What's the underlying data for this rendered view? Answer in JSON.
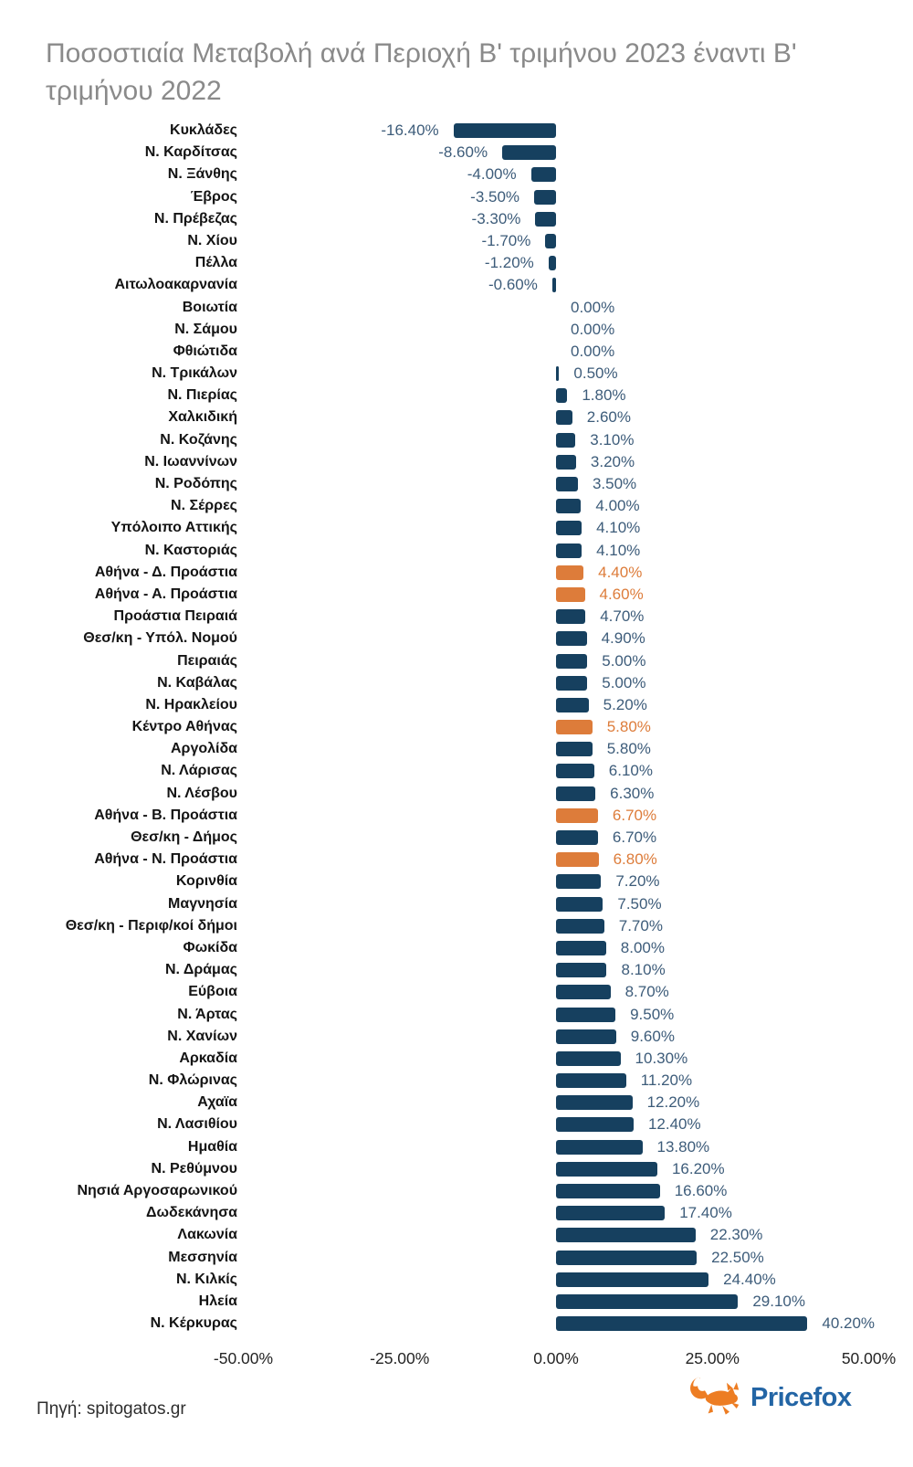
{
  "title": "Ποσοστιαία Μεταβολή ανά Περιοχή Β' τριμήνου 2023 έναντι Β' τριμήνου 2022",
  "footer": {
    "source": "Πηγή: spitogatos.gr",
    "brand": "Pricefox"
  },
  "colors": {
    "bar_navy": "#16405f",
    "bar_orange": "#dd7c3a",
    "value_text_navy": "#3d5c7a",
    "value_text_orange": "#dd7c3a",
    "category_text": "#141414",
    "title_text": "#8a8a8a",
    "axis_text": "#242424",
    "brand_blue": "#2365a5",
    "fox_orange": "#ed7d23"
  },
  "chart_data": {
    "type": "bar",
    "orientation": "horizontal",
    "title": "Ποσοστιαία Μεταβολή ανά Περιοχή Β' τριμήνου 2023 έναντι Β' τριμήνου 2022",
    "xlim": [
      -50,
      50
    ],
    "grid": false,
    "legend": false,
    "value_label_format": "0.00%",
    "x_ticks": [
      {
        "value": -50,
        "label": "-50.00%"
      },
      {
        "value": -25,
        "label": "-25.00%"
      },
      {
        "value": 0,
        "label": "0.00%"
      },
      {
        "value": 25,
        "label": "25.00%"
      },
      {
        "value": 50,
        "label": "50.00%"
      }
    ],
    "categories": [
      "Κυκλάδες",
      "Ν. Καρδίτσας",
      "Ν. Ξάνθης",
      "Έβρος",
      "Ν. Πρέβεζας",
      "Ν. Χίου",
      "Πέλλα",
      "Αιτωλοακαρνανία",
      "Βοιωτία",
      "Ν. Σάμου",
      "Φθιώτιδα",
      "Ν. Τρικάλων",
      "Ν. Πιερίας",
      "Χαλκιδική",
      "Ν. Κοζάνης",
      "Ν. Ιωαννίνων",
      "Ν. Ροδόπης",
      "Ν. Σέρρες",
      "Υπόλοιπο Αττικής",
      "Ν. Καστοριάς",
      "Αθήνα - Δ. Προάστια",
      "Αθήνα - Α. Προάστια",
      "Προάστια Πειραιά",
      "Θεσ/κη - Υπόλ. Νομού",
      "Πειραιάς",
      "Ν. Καβάλας",
      "Ν. Ηρακλείου",
      "Κέντρο Αθήνας",
      "Αργολίδα",
      "Ν. Λάρισας",
      "Ν. Λέσβου",
      "Αθήνα - Β. Προάστια",
      "Θεσ/κη - Δήμος",
      "Αθήνα - Ν. Προάστια",
      "Κορινθία",
      "Μαγνησία",
      "Θεσ/κη - Περιφ/κοί δήμοι",
      "Φωκίδα",
      "Ν. Δράμας",
      "Εύβοια",
      "Ν. Άρτας",
      "Ν. Χανίων",
      "Αρκαδία",
      "Ν. Φλώρινας",
      "Αχαϊα",
      "Ν. Λασιθίου",
      "Ημαθία",
      "Ν. Ρεθύμνου",
      "Νησιά Αργοσαρωνικού",
      "Δωδεκάνησα",
      "Λακωνία",
      "Μεσσηνία",
      "Ν. Κιλκίς",
      "Ηλεία",
      "Ν. Κέρκυρας"
    ],
    "values": [
      -16.4,
      -8.6,
      -4.0,
      -3.5,
      -3.3,
      -1.7,
      -1.2,
      -0.6,
      0.0,
      0.0,
      0.0,
      0.5,
      1.8,
      2.6,
      3.1,
      3.2,
      3.5,
      4.0,
      4.1,
      4.1,
      4.4,
      4.6,
      4.7,
      4.9,
      5.0,
      5.0,
      5.2,
      5.8,
      5.8,
      6.1,
      6.3,
      6.7,
      6.7,
      6.8,
      7.2,
      7.5,
      7.7,
      8.0,
      8.1,
      8.7,
      9.5,
      9.6,
      10.3,
      11.2,
      12.2,
      12.4,
      13.8,
      16.2,
      16.6,
      17.4,
      22.3,
      22.5,
      24.4,
      29.1,
      40.2
    ],
    "highlighted_indices": [
      20,
      21,
      27,
      31,
      33
    ]
  }
}
